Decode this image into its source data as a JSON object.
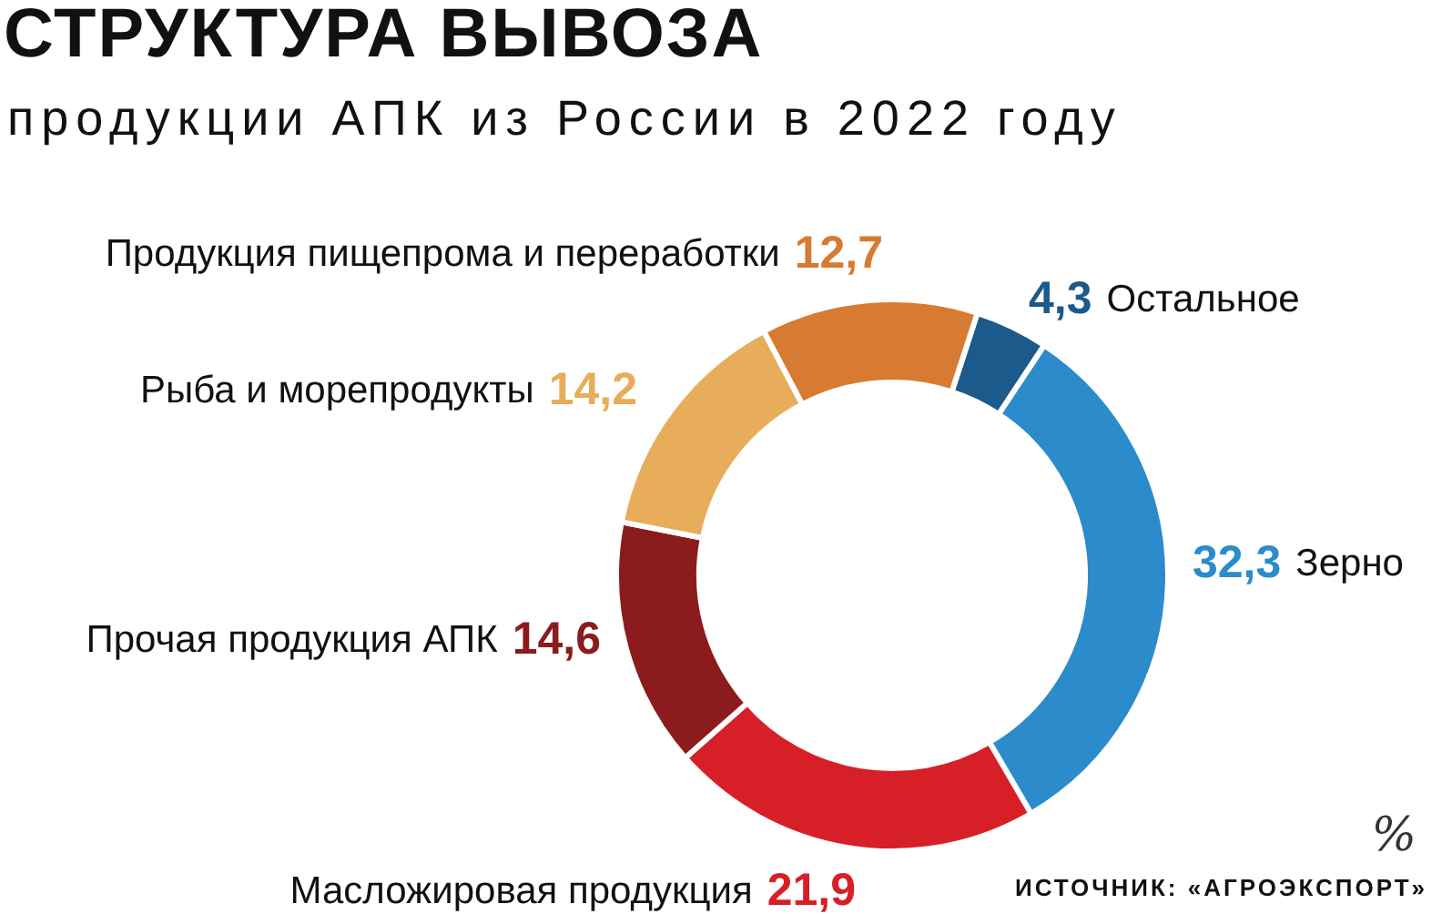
{
  "chart_data": {
    "type": "donut",
    "title": "СТРУКТУРА ВЫВОЗА",
    "subtitle": "продукции АПК из России в 2022 году",
    "categories": [
      "Остальное",
      "Зерно",
      "Масложировая продукция",
      "Прочая продукция АПК",
      "Рыба и морепродукты",
      "Продукция пищепрома и переработки"
    ],
    "values": [
      4.3,
      32.3,
      21.9,
      14.6,
      14.2,
      12.7
    ],
    "value_labels": [
      "4,3",
      "32,3",
      "21,9",
      "14,6",
      "14,2",
      "12,7"
    ],
    "colors": [
      "#1b5a8a",
      "#2b8bcb",
      "#d71f28",
      "#8b1b1c",
      "#e8ad5b",
      "#d67b31"
    ],
    "legend": false,
    "annotations": [
      "%",
      "ИСТОЧНИК: «АГРОЭКСПОРТ»"
    ]
  }
}
